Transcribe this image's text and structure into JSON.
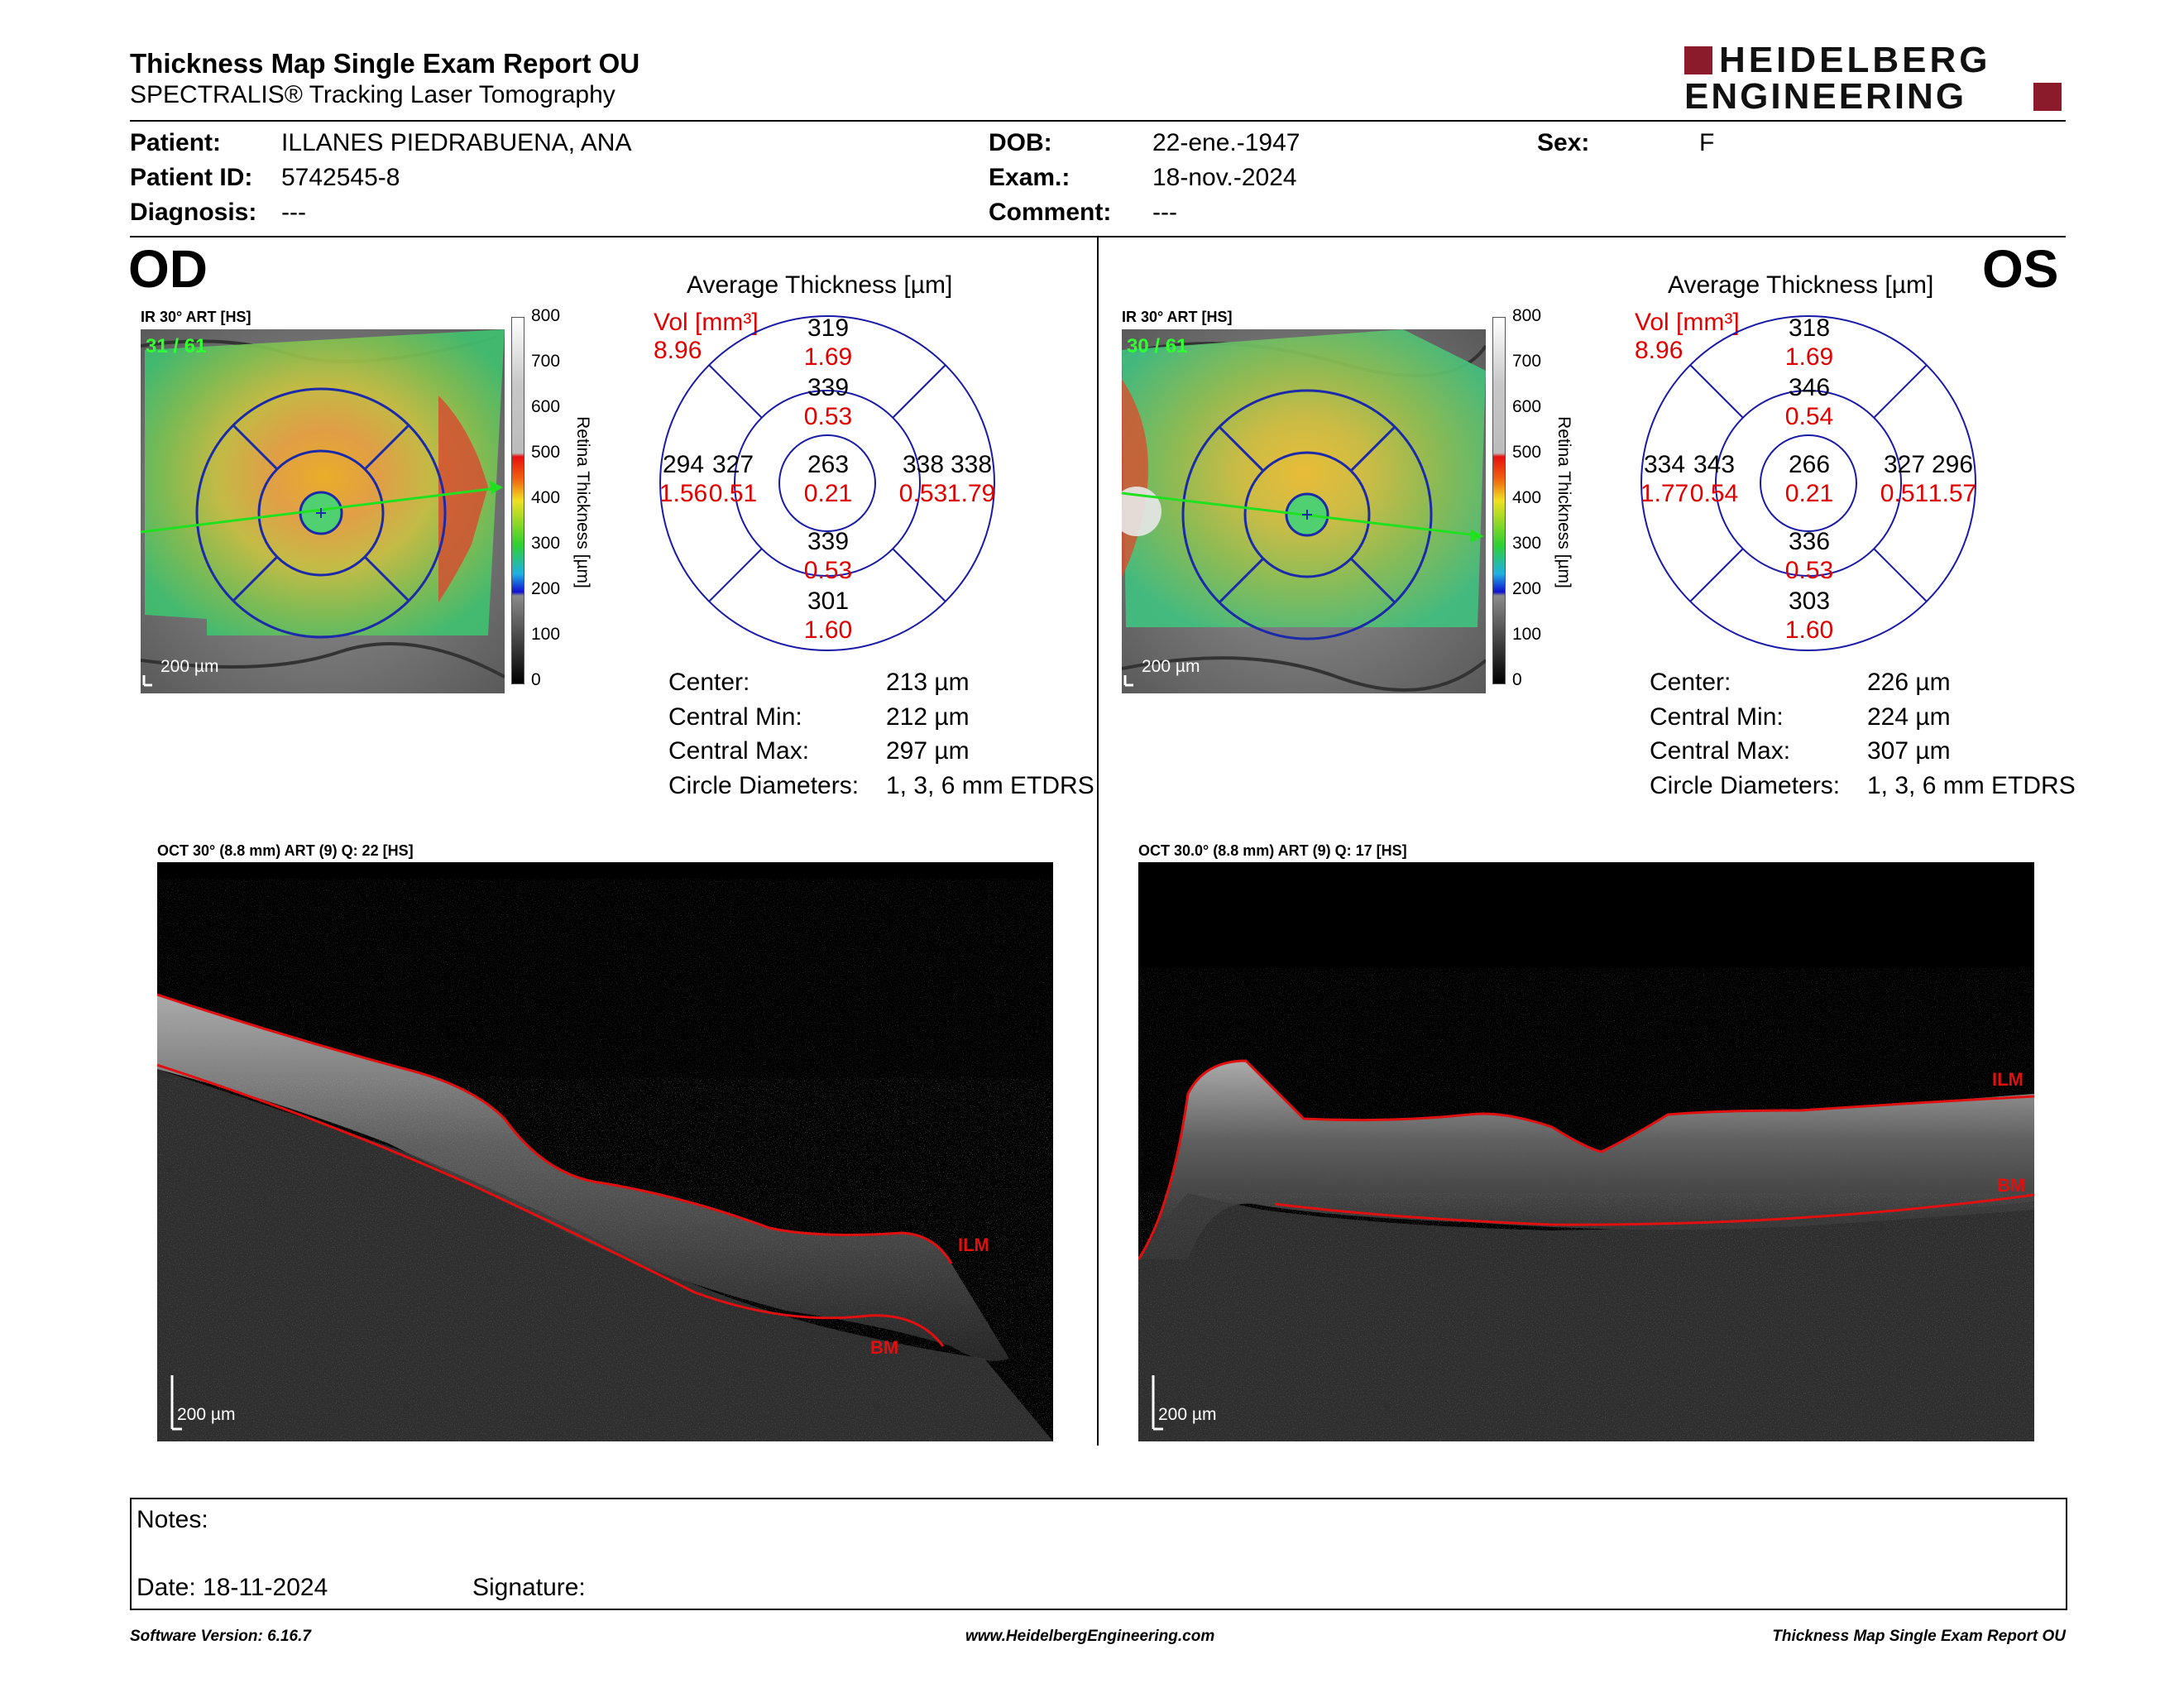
{
  "header": {
    "title": "Thickness Map Single Exam Report OU",
    "subtitle": "SPECTRALIS® Tracking Laser Tomography",
    "logo_top": "HEIDELBERG",
    "logo_bottom": "ENGINEERING",
    "brand_color": "#8b1a2b"
  },
  "patient": {
    "patient_label": "Patient:",
    "patient": "ILLANES PIEDRABUENA, ANA",
    "id_label": "Patient ID:",
    "id": "5742545-8",
    "diagnosis_label": "Diagnosis:",
    "diagnosis": "---",
    "dob_label": "DOB:",
    "dob": "22-ene.-1947",
    "exam_label": "Exam.:",
    "exam": "18-nov.-2024",
    "comment_label": "Comment:",
    "comment": "---",
    "sex_label": "Sex:",
    "sex": "F"
  },
  "od": {
    "eye": "OD",
    "fundus_label": "IR 30° ART [HS]",
    "frames": "31 / 61",
    "scale": "200 µm",
    "colorbar_ticks": [
      "800",
      "700",
      "600",
      "500",
      "400",
      "300",
      "200",
      "100",
      "0"
    ],
    "colorbar_title": "Retina Thickness [µm]",
    "avg_title": "Average Thickness [µm]",
    "vol_label": "Vol [mm³]",
    "vol_total": "8.96",
    "grid": {
      "center": {
        "t": "263",
        "v": "0.21"
      },
      "inner_sup": {
        "t": "339",
        "v": "0.53"
      },
      "inner_inf": {
        "t": "339",
        "v": "0.53"
      },
      "inner_left": {
        "t": "327",
        "v": "0.51"
      },
      "inner_right": {
        "t": "338",
        "v": "0.53"
      },
      "outer_sup": {
        "t": "319",
        "v": "1.69"
      },
      "outer_inf": {
        "t": "301",
        "v": "1.60"
      },
      "outer_left": {
        "t": "294",
        "v": "1.56"
      },
      "outer_right": {
        "t": "338",
        "v": "1.79"
      }
    },
    "stats": [
      {
        "label": "Center:",
        "value": "213 µm"
      },
      {
        "label": "Central Min:",
        "value": "212 µm"
      },
      {
        "label": "Central Max:",
        "value": "297 µm"
      },
      {
        "label": "Circle Diameters:",
        "value": "1, 3, 6 mm ETDRS"
      }
    ],
    "oct_label": "OCT 30° (8.8 mm) ART (9) Q: 22 [HS]",
    "ilm": "ILM",
    "bm": "BM",
    "oct_scale": "200 µm"
  },
  "os": {
    "eye": "OS",
    "fundus_label": "IR 30° ART [HS]",
    "frames": "30 / 61",
    "scale": "200 µm",
    "colorbar_ticks": [
      "800",
      "700",
      "600",
      "500",
      "400",
      "300",
      "200",
      "100",
      "0"
    ],
    "colorbar_title": "Retina Thickness [µm]",
    "avg_title": "Average Thickness [µm]",
    "vol_label": "Vol [mm³]",
    "vol_total": "8.96",
    "grid": {
      "center": {
        "t": "266",
        "v": "0.21"
      },
      "inner_sup": {
        "t": "346",
        "v": "0.54"
      },
      "inner_inf": {
        "t": "336",
        "v": "0.53"
      },
      "inner_left": {
        "t": "343",
        "v": "0.54"
      },
      "inner_right": {
        "t": "327",
        "v": "0.51"
      },
      "outer_sup": {
        "t": "318",
        "v": "1.69"
      },
      "outer_inf": {
        "t": "303",
        "v": "1.60"
      },
      "outer_left": {
        "t": "334",
        "v": "1.77"
      },
      "outer_right": {
        "t": "296",
        "v": "1.57"
      }
    },
    "stats": [
      {
        "label": "Center:",
        "value": "226 µm"
      },
      {
        "label": "Central Min:",
        "value": "224 µm"
      },
      {
        "label": "Central Max:",
        "value": "307 µm"
      },
      {
        "label": "Circle Diameters:",
        "value": "1, 3, 6 mm ETDRS"
      }
    ],
    "oct_label": "OCT 30.0° (8.8 mm) ART (9) Q: 17 [HS]",
    "ilm": "ILM",
    "bm": "BM",
    "oct_scale": "200 µm"
  },
  "notes": {
    "notes_label": "Notes:",
    "date_label": "Date: 18-11-2024",
    "signature_label": "Signature:"
  },
  "footer": {
    "software": "Software Version: 6.16.7",
    "url": "www.HeidelbergEngineering.com",
    "report": "Thickness Map Single Exam Report OU"
  }
}
